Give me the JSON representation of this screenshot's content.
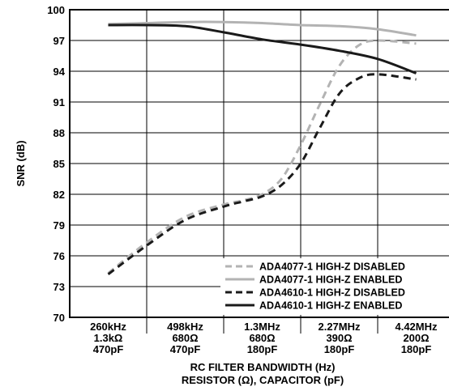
{
  "chart_data": {
    "type": "line",
    "title": "",
    "ylabel": "SNR (dB)",
    "xlabel_lines": [
      "RC FILTER BANDWIDTH (Hz)",
      "RESISTOR (Ω), CAPACITOR (pF)"
    ],
    "ylim": [
      70,
      100
    ],
    "yticks": [
      70,
      73,
      76,
      79,
      82,
      85,
      88,
      91,
      94,
      97,
      100
    ],
    "grid": true,
    "legend_position": "bottom-right",
    "categories": [
      [
        "260kHz",
        "1.3kΩ",
        "470pF"
      ],
      [
        "498kHz",
        "680Ω",
        "470pF"
      ],
      [
        "1.3MHz",
        "680Ω",
        "180pF"
      ],
      [
        "2.27MHz",
        "390Ω",
        "180pF"
      ],
      [
        "4.42MHz",
        "200Ω",
        "180pF"
      ]
    ],
    "series": [
      {
        "name": "ADA4077-1 HIGH-Z DISABLED",
        "color": "#b3b3b3",
        "style": "dashed",
        "x": [
          0,
          0.5,
          1,
          1.5,
          1.75,
          2,
          2.25,
          2.5,
          2.75,
          3,
          3.25,
          3.5,
          4
        ],
        "y": [
          74.3,
          77.3,
          79.8,
          81.0,
          81.4,
          82.0,
          83.5,
          86.8,
          90.8,
          94.5,
          96.5,
          97.0,
          96.7
        ]
      },
      {
        "name": "ADA4077-1 HIGH-Z ENABLED",
        "color": "#b3b3b3",
        "style": "solid",
        "x": [
          0,
          0.5,
          1,
          1.5,
          2,
          2.5,
          3,
          3.5,
          4
        ],
        "y": [
          98.6,
          98.7,
          98.8,
          98.8,
          98.7,
          98.5,
          98.4,
          98.1,
          97.5
        ]
      },
      {
        "name": "ADA4610-1 HIGH-Z DISABLED",
        "color": "#1a1a1a",
        "style": "dashed",
        "x": [
          0,
          0.5,
          1,
          1.5,
          1.75,
          2,
          2.25,
          2.5,
          2.75,
          3,
          3.25,
          3.5,
          4
        ],
        "y": [
          74.2,
          77.0,
          79.5,
          80.8,
          81.3,
          81.8,
          82.9,
          85.0,
          88.5,
          91.8,
          93.3,
          93.7,
          93.2
        ]
      },
      {
        "name": "ADA4610-1 HIGH-Z ENABLED",
        "color": "#1a1a1a",
        "style": "solid",
        "x": [
          0,
          0.5,
          1,
          1.5,
          2,
          2.5,
          3,
          3.5,
          4
        ],
        "y": [
          98.5,
          98.5,
          98.4,
          97.8,
          97.1,
          96.6,
          96.0,
          95.2,
          93.8
        ]
      }
    ]
  }
}
